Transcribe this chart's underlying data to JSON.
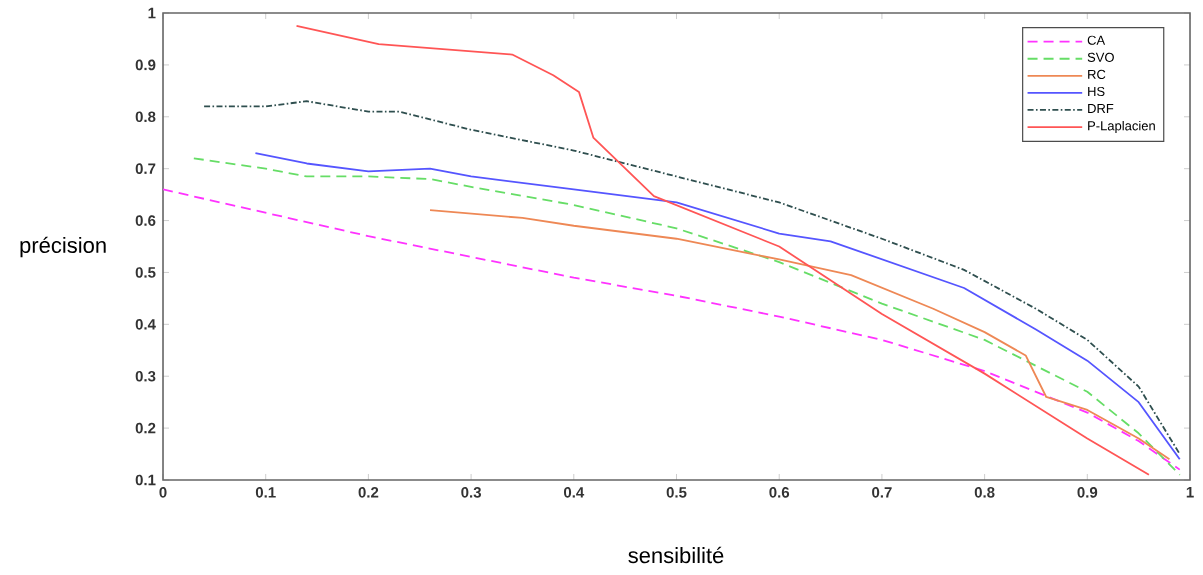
{
  "chart_data": {
    "type": "line",
    "xlabel": "sensibilité",
    "ylabel": "précision",
    "xlim": [
      0,
      1
    ],
    "ylim": [
      0.1,
      1
    ],
    "xticks": [
      0,
      0.1,
      0.2,
      0.3,
      0.4,
      0.5,
      0.6,
      0.7,
      0.8,
      0.9,
      1
    ],
    "yticks": [
      0.1,
      0.2,
      0.3,
      0.4,
      0.5,
      0.6,
      0.7,
      0.8,
      0.9,
      1
    ],
    "grid": false,
    "legend": "top right",
    "series": [
      {
        "name": "CA",
        "color": "#ff33ff",
        "line_style": "dashed",
        "x": [
          0,
          0.2,
          0.4,
          0.5,
          0.6,
          0.7,
          0.8,
          0.9,
          0.95,
          0.99
        ],
        "values": [
          0.66,
          0.57,
          0.49,
          0.455,
          0.415,
          0.37,
          0.31,
          0.23,
          0.175,
          0.12
        ]
      },
      {
        "name": "SVO",
        "color": "#66dd66",
        "line_style": "dashed",
        "x": [
          0.03,
          0.1,
          0.14,
          0.2,
          0.26,
          0.3,
          0.4,
          0.5,
          0.6,
          0.7,
          0.8,
          0.9,
          0.95,
          0.99
        ],
        "values": [
          0.72,
          0.7,
          0.685,
          0.685,
          0.68,
          0.665,
          0.63,
          0.585,
          0.52,
          0.44,
          0.37,
          0.27,
          0.19,
          0.11
        ]
      },
      {
        "name": "RC",
        "color": "#ee8855",
        "line_style": "solid",
        "x": [
          0.26,
          0.35,
          0.4,
          0.5,
          0.6,
          0.67,
          0.75,
          0.8,
          0.84,
          0.85,
          0.86,
          0.9,
          0.95,
          0.98
        ],
        "values": [
          0.62,
          0.605,
          0.59,
          0.565,
          0.525,
          0.495,
          0.43,
          0.385,
          0.34,
          0.3,
          0.26,
          0.235,
          0.18,
          0.14
        ]
      },
      {
        "name": "HS",
        "color": "#5555ff",
        "line_style": "solid",
        "x": [
          0.09,
          0.14,
          0.2,
          0.26,
          0.3,
          0.4,
          0.5,
          0.6,
          0.65,
          0.78,
          0.85,
          0.9,
          0.95,
          0.99
        ],
        "values": [
          0.73,
          0.71,
          0.695,
          0.7,
          0.685,
          0.66,
          0.635,
          0.575,
          0.56,
          0.47,
          0.39,
          0.33,
          0.25,
          0.14
        ]
      },
      {
        "name": "DRF",
        "color": "#2f4f4f",
        "line_style": "dashdot",
        "x": [
          0.04,
          0.1,
          0.14,
          0.2,
          0.23,
          0.3,
          0.4,
          0.5,
          0.6,
          0.7,
          0.78,
          0.85,
          0.9,
          0.95,
          0.99
        ],
        "values": [
          0.82,
          0.82,
          0.83,
          0.81,
          0.81,
          0.775,
          0.735,
          0.685,
          0.635,
          0.565,
          0.505,
          0.43,
          0.37,
          0.28,
          0.15
        ]
      },
      {
        "name": "P-Laplacien",
        "color": "#ff5555",
        "line_style": "solid",
        "x": [
          0.13,
          0.21,
          0.34,
          0.38,
          0.405,
          0.419,
          0.478,
          0.6,
          0.7,
          0.8,
          0.9,
          0.96
        ],
        "values": [
          0.975,
          0.94,
          0.92,
          0.88,
          0.848,
          0.76,
          0.647,
          0.55,
          0.42,
          0.305,
          0.18,
          0.11
        ]
      }
    ]
  }
}
